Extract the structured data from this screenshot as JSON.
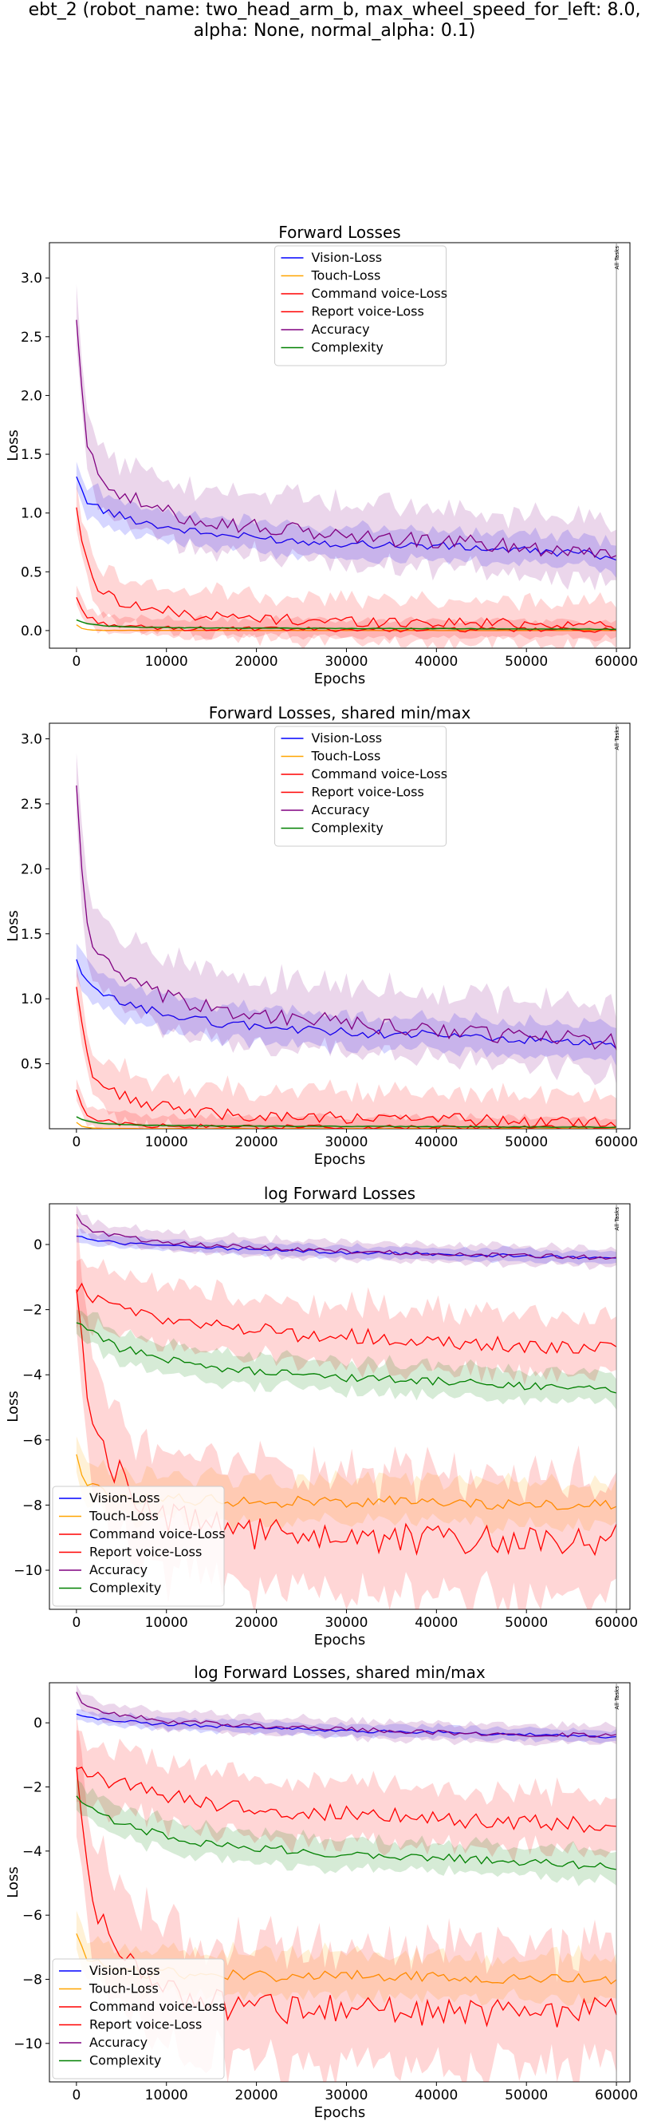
{
  "suptitle": {
    "line1": "ebt_2 (robot_name: two_head_arm_b, max_wheel_speed_for_left: 8.0,",
    "line2": "alpha: None, normal_alpha: 0.1)"
  },
  "colors": {
    "vision": "#0000ff",
    "touch": "#ffa500",
    "command": "#ff0000",
    "report": "#ff0000",
    "accuracy": "#800080",
    "complexity": "#008000"
  },
  "chart_data": [
    {
      "type": "line",
      "title": "Forward Losses",
      "xlabel": "Epochs",
      "ylabel": "Loss",
      "xlim": [
        -3000,
        61500
      ],
      "ylim": [
        -0.15,
        3.3
      ],
      "xticks": [
        0,
        10000,
        20000,
        30000,
        40000,
        50000,
        60000
      ],
      "yticks": [
        0.0,
        0.5,
        1.0,
        1.5,
        2.0,
        2.5,
        3.0
      ],
      "ytick_labels": [
        "0.0",
        "0.5",
        "1.0",
        "1.5",
        "2.0",
        "2.5",
        "3.0"
      ],
      "vline": {
        "x": 60000,
        "label": "All Tasks"
      },
      "legend_position": "upper center",
      "series": [
        {
          "name": "Vision-Loss",
          "color": "#0000ff",
          "x": [
            0,
            1000,
            3000,
            6000,
            10000,
            15000,
            20000,
            25000,
            30000,
            35000,
            40000,
            45000,
            50000,
            55000,
            60000
          ],
          "y": [
            1.28,
            1.12,
            1.02,
            0.95,
            0.88,
            0.82,
            0.79,
            0.76,
            0.74,
            0.73,
            0.72,
            0.7,
            0.68,
            0.66,
            0.63
          ],
          "spread": 0.14
        },
        {
          "name": "Touch-Loss",
          "color": "#ffa500",
          "x": [
            0,
            500,
            1500,
            3000,
            10000,
            30000,
            60000
          ],
          "y": [
            0.05,
            0.02,
            0.005,
            0.002,
            0.001,
            0.001,
            0.001
          ],
          "spread": 0.005
        },
        {
          "name": "Command voice-Loss",
          "color": "#ff0000",
          "x": [
            0,
            1000,
            3000,
            6000,
            10000,
            15000,
            20000,
            30000,
            40000,
            50000,
            60000
          ],
          "y": [
            0.28,
            0.12,
            0.06,
            0.03,
            0.02,
            0.015,
            0.012,
            0.01,
            0.008,
            0.006,
            0.005
          ],
          "spread": 0.08
        },
        {
          "name": "Report voice-Loss",
          "color": "#ff0000",
          "x": [
            0,
            1000,
            2000,
            4000,
            6000,
            10000,
            15000,
            20000,
            25000,
            30000,
            40000,
            50000,
            60000
          ],
          "y": [
            1.06,
            0.6,
            0.4,
            0.28,
            0.22,
            0.16,
            0.12,
            0.1,
            0.09,
            0.08,
            0.07,
            0.06,
            0.05
          ],
          "spread": 0.2
        },
        {
          "name": "Accuracy",
          "color": "#800080",
          "x": [
            0,
            1000,
            2000,
            4000,
            6000,
            10000,
            15000,
            20000,
            25000,
            30000,
            35000,
            40000,
            45000,
            50000,
            55000,
            60000
          ],
          "y": [
            2.65,
            1.6,
            1.4,
            1.22,
            1.12,
            1.0,
            0.93,
            0.88,
            0.84,
            0.81,
            0.78,
            0.76,
            0.74,
            0.71,
            0.69,
            0.67
          ],
          "spread": 0.28
        },
        {
          "name": "Complexity",
          "color": "#008000",
          "x": [
            0,
            1000,
            3000,
            6000,
            10000,
            20000,
            30000,
            40000,
            50000,
            60000
          ],
          "y": [
            0.09,
            0.06,
            0.04,
            0.03,
            0.025,
            0.02,
            0.018,
            0.016,
            0.014,
            0.012
          ],
          "spread": 0.01
        }
      ]
    },
    {
      "type": "line",
      "title": "Forward Losses, shared min/max",
      "xlabel": "Epochs",
      "ylabel": "Loss",
      "xlim": [
        -3000,
        61500
      ],
      "ylim": [
        0.0,
        3.12
      ],
      "xticks": [
        0,
        10000,
        20000,
        30000,
        40000,
        50000,
        60000
      ],
      "yticks": [
        0.5,
        1.0,
        1.5,
        2.0,
        2.5,
        3.0
      ],
      "ytick_labels": [
        "0.5",
        "1.0",
        "1.5",
        "2.0",
        "2.5",
        "3.0"
      ],
      "vline": {
        "x": 60000,
        "label": "All Tasks"
      },
      "legend_position": "upper center",
      "series": [
        {
          "name": "Vision-Loss",
          "color": "#0000ff",
          "x": [
            0,
            1000,
            3000,
            6000,
            10000,
            15000,
            20000,
            25000,
            30000,
            35000,
            40000,
            45000,
            50000,
            55000,
            60000
          ],
          "y": [
            1.28,
            1.12,
            1.02,
            0.95,
            0.88,
            0.82,
            0.79,
            0.76,
            0.74,
            0.73,
            0.72,
            0.7,
            0.68,
            0.66,
            0.63
          ],
          "spread": 0.14
        },
        {
          "name": "Touch-Loss",
          "color": "#ffa500",
          "x": [
            0,
            500,
            1500,
            3000,
            10000,
            30000,
            60000
          ],
          "y": [
            0.05,
            0.02,
            0.005,
            0.002,
            0.001,
            0.001,
            0.001
          ],
          "spread": 0.005
        },
        {
          "name": "Command voice-Loss",
          "color": "#ff0000",
          "x": [
            0,
            1000,
            3000,
            6000,
            10000,
            15000,
            20000,
            30000,
            40000,
            50000,
            60000
          ],
          "y": [
            0.28,
            0.12,
            0.06,
            0.03,
            0.02,
            0.015,
            0.012,
            0.01,
            0.008,
            0.006,
            0.005
          ],
          "spread": 0.08
        },
        {
          "name": "Report voice-Loss",
          "color": "#ff0000",
          "x": [
            0,
            1000,
            2000,
            4000,
            6000,
            10000,
            15000,
            20000,
            25000,
            30000,
            40000,
            50000,
            60000
          ],
          "y": [
            1.06,
            0.6,
            0.4,
            0.28,
            0.22,
            0.16,
            0.12,
            0.1,
            0.09,
            0.08,
            0.07,
            0.06,
            0.05
          ],
          "spread": 0.2
        },
        {
          "name": "Accuracy",
          "color": "#800080",
          "x": [
            0,
            1000,
            2000,
            4000,
            6000,
            10000,
            15000,
            20000,
            25000,
            30000,
            35000,
            40000,
            45000,
            50000,
            55000,
            60000
          ],
          "y": [
            2.65,
            1.6,
            1.4,
            1.22,
            1.12,
            1.0,
            0.93,
            0.88,
            0.84,
            0.81,
            0.78,
            0.76,
            0.74,
            0.71,
            0.69,
            0.67
          ],
          "spread": 0.28
        },
        {
          "name": "Complexity",
          "color": "#008000",
          "x": [
            0,
            1000,
            3000,
            6000,
            10000,
            20000,
            30000,
            40000,
            50000,
            60000
          ],
          "y": [
            0.09,
            0.06,
            0.04,
            0.03,
            0.025,
            0.02,
            0.018,
            0.016,
            0.014,
            0.012
          ],
          "spread": 0.01
        }
      ]
    },
    {
      "type": "line",
      "title": "log Forward Losses",
      "xlabel": "Epochs",
      "ylabel": "Loss",
      "xlim": [
        -3000,
        61500
      ],
      "ylim": [
        -11.2,
        1.25
      ],
      "xticks": [
        0,
        10000,
        20000,
        30000,
        40000,
        50000,
        60000
      ],
      "yticks": [
        -10,
        -8,
        -6,
        -4,
        -2,
        0
      ],
      "ytick_labels": [
        "−10",
        "−8",
        "−6",
        "−4",
        "−2",
        "0"
      ],
      "vline": {
        "x": 60000,
        "label": "All Tasks"
      },
      "legend_position": "lower left",
      "series": [
        {
          "name": "Vision-Loss",
          "color": "#0000ff",
          "x": [
            0,
            2000,
            5000,
            10000,
            20000,
            30000,
            40000,
            50000,
            60000
          ],
          "y": [
            0.25,
            0.12,
            0.05,
            -0.05,
            -0.15,
            -0.25,
            -0.3,
            -0.35,
            -0.45
          ],
          "spread": 0.2
        },
        {
          "name": "Touch-Loss",
          "color": "#ffa500",
          "x": [
            0,
            1000,
            2000,
            4000,
            7000,
            10000,
            20000,
            30000,
            40000,
            50000,
            60000
          ],
          "y": [
            -6.5,
            -7.2,
            -7.5,
            -7.7,
            -7.8,
            -7.8,
            -7.9,
            -7.9,
            -7.9,
            -8.0,
            -8.0
          ],
          "spread": 0.7
        },
        {
          "name": "Command voice-Loss",
          "color": "#ff0000",
          "x": [
            0,
            1000,
            2000,
            4000,
            6000,
            8000,
            10000,
            15000,
            20000,
            30000,
            40000,
            50000,
            60000
          ],
          "y": [
            -1.3,
            -4.0,
            -5.5,
            -6.8,
            -7.5,
            -8.0,
            -8.4,
            -8.7,
            -8.9,
            -9.0,
            -9.1,
            -9.1,
            -9.0
          ],
          "spread": 2.0
        },
        {
          "name": "Report voice-Loss",
          "color": "#ff0000",
          "x": [
            0,
            1000,
            3000,
            6000,
            10000,
            15000,
            20000,
            25000,
            30000,
            40000,
            50000,
            60000
          ],
          "y": [
            -1.3,
            -1.5,
            -1.8,
            -2.0,
            -2.3,
            -2.5,
            -2.6,
            -2.8,
            -2.8,
            -3.0,
            -3.1,
            -3.2
          ],
          "spread": 1.0
        },
        {
          "name": "Accuracy",
          "color": "#800080",
          "x": [
            0,
            1000,
            3000,
            6000,
            10000,
            20000,
            30000,
            40000,
            50000,
            60000
          ],
          "y": [
            0.95,
            0.5,
            0.35,
            0.2,
            0.05,
            -0.1,
            -0.2,
            -0.3,
            -0.35,
            -0.4
          ],
          "spread": 0.3
        },
        {
          "name": "Complexity",
          "color": "#008000",
          "x": [
            0,
            2000,
            5000,
            10000,
            15000,
            20000,
            30000,
            40000,
            50000,
            60000
          ],
          "y": [
            -2.4,
            -2.8,
            -3.2,
            -3.5,
            -3.8,
            -3.9,
            -4.1,
            -4.2,
            -4.35,
            -4.5
          ],
          "spread": 0.5
        }
      ]
    },
    {
      "type": "line",
      "title": "log Forward Losses, shared min/max",
      "xlabel": "Epochs",
      "ylabel": "Loss",
      "xlim": [
        -3000,
        61500
      ],
      "ylim": [
        -11.2,
        1.25
      ],
      "xticks": [
        0,
        10000,
        20000,
        30000,
        40000,
        50000,
        60000
      ],
      "yticks": [
        -10,
        -8,
        -6,
        -4,
        -2,
        0
      ],
      "ytick_labels": [
        "−10",
        "−8",
        "−6",
        "−4",
        "−2",
        "0"
      ],
      "vline": {
        "x": 60000,
        "label": "All Tasks"
      },
      "legend_position": "lower left",
      "series": [
        {
          "name": "Vision-Loss",
          "color": "#0000ff",
          "x": [
            0,
            2000,
            5000,
            10000,
            20000,
            30000,
            40000,
            50000,
            60000
          ],
          "y": [
            0.25,
            0.12,
            0.05,
            -0.05,
            -0.15,
            -0.25,
            -0.3,
            -0.35,
            -0.45
          ],
          "spread": 0.2
        },
        {
          "name": "Touch-Loss",
          "color": "#ffa500",
          "x": [
            0,
            1000,
            2000,
            4000,
            7000,
            10000,
            20000,
            30000,
            40000,
            50000,
            60000
          ],
          "y": [
            -6.5,
            -7.2,
            -7.5,
            -7.7,
            -7.8,
            -7.8,
            -7.9,
            -7.9,
            -7.9,
            -8.0,
            -8.0
          ],
          "spread": 0.7
        },
        {
          "name": "Command voice-Loss",
          "color": "#ff0000",
          "x": [
            0,
            1000,
            2000,
            4000,
            6000,
            8000,
            10000,
            15000,
            20000,
            30000,
            40000,
            50000,
            60000
          ],
          "y": [
            -1.3,
            -4.0,
            -5.5,
            -6.8,
            -7.5,
            -8.0,
            -8.4,
            -8.7,
            -8.9,
            -9.0,
            -9.1,
            -9.1,
            -9.0
          ],
          "spread": 2.0
        },
        {
          "name": "Report voice-Loss",
          "color": "#ff0000",
          "x": [
            0,
            1000,
            3000,
            6000,
            10000,
            15000,
            20000,
            25000,
            30000,
            40000,
            50000,
            60000
          ],
          "y": [
            -1.3,
            -1.5,
            -1.8,
            -2.0,
            -2.3,
            -2.5,
            -2.6,
            -2.8,
            -2.8,
            -3.0,
            -3.1,
            -3.2
          ],
          "spread": 1.0
        },
        {
          "name": "Accuracy",
          "color": "#800080",
          "x": [
            0,
            1000,
            3000,
            6000,
            10000,
            20000,
            30000,
            40000,
            50000,
            60000
          ],
          "y": [
            0.95,
            0.5,
            0.35,
            0.2,
            0.05,
            -0.1,
            -0.2,
            -0.3,
            -0.35,
            -0.4
          ],
          "spread": 0.3
        },
        {
          "name": "Complexity",
          "color": "#008000",
          "x": [
            0,
            2000,
            5000,
            10000,
            15000,
            20000,
            30000,
            40000,
            50000,
            60000
          ],
          "y": [
            -2.4,
            -2.8,
            -3.2,
            -3.5,
            -3.8,
            -3.9,
            -4.1,
            -4.2,
            -4.35,
            -4.5
          ],
          "spread": 0.5
        }
      ]
    }
  ]
}
